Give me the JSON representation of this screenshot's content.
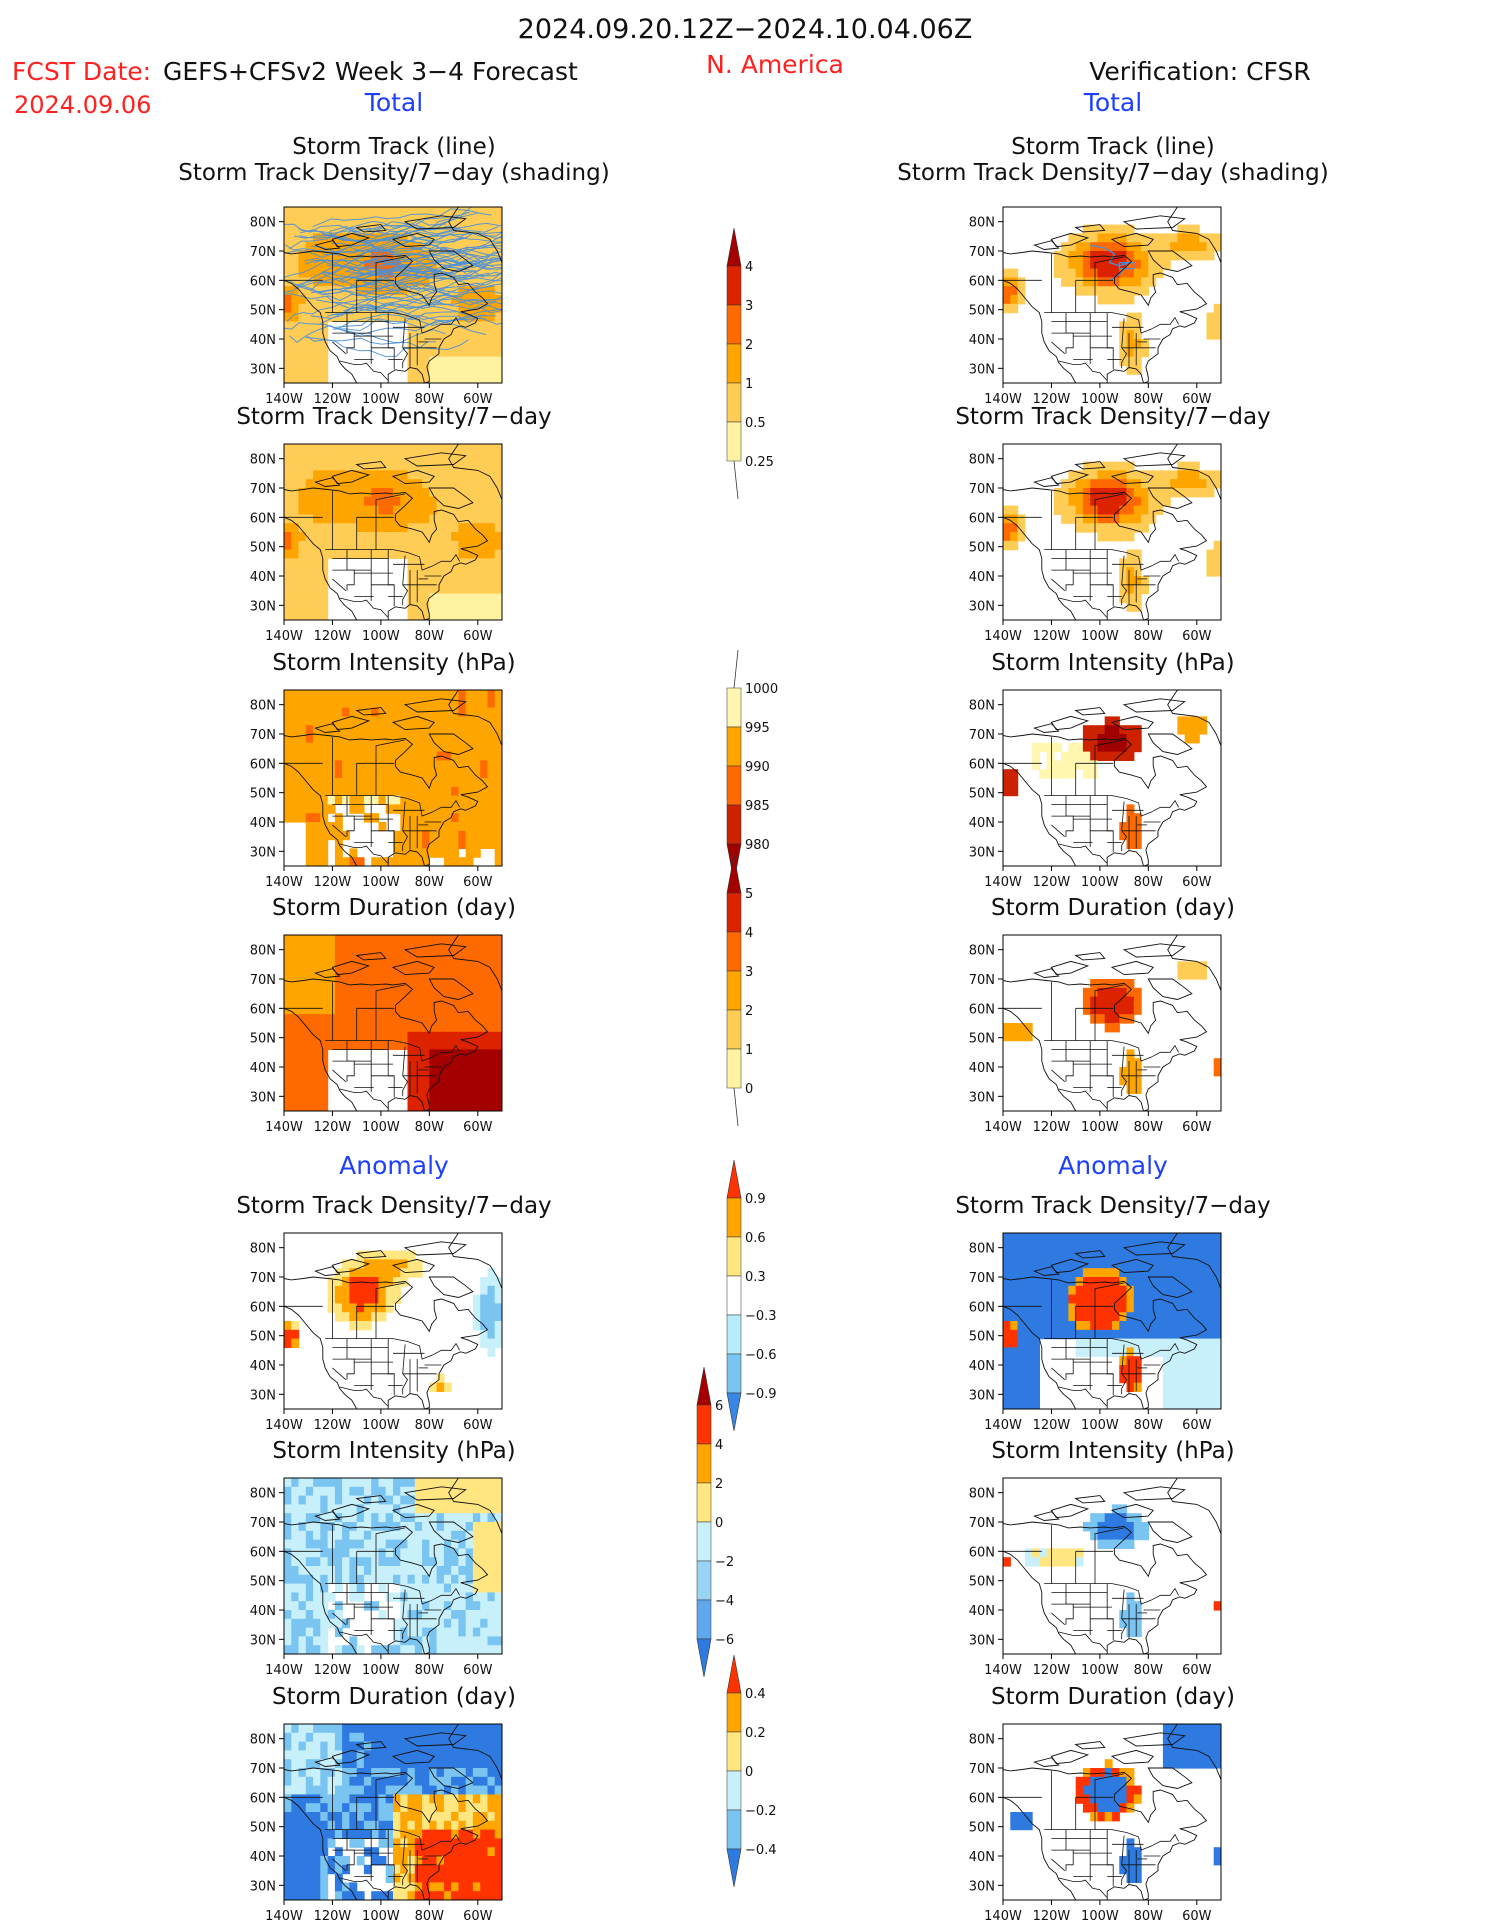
{
  "header": {
    "title": "2024.09.20.12Z−2024.10.04.06Z",
    "fcst_label": "FCST Date:",
    "fcst_date": "2024.09.06",
    "left_title": "GEFS+CFSv2 Week 3−4 Forecast",
    "region": "N. America",
    "right_title": "Verification: CFSR"
  },
  "sections": {
    "total": "Total",
    "anomaly": "Anomaly"
  },
  "panel_titles": {
    "track_line": "Storm Track (line)",
    "track_shading": "Storm Track Density/7−day (shading)",
    "density": "Storm Track Density/7−day",
    "intensity": "Storm Intensity (hPa)",
    "duration": "Storm Duration (day)"
  },
  "axes": {
    "lat_labels": [
      "80N",
      "70N",
      "60N",
      "50N",
      "40N",
      "30N"
    ],
    "lon_labels": [
      "140W",
      "120W",
      "100W",
      "80W",
      "60W"
    ]
  },
  "colorbars": [
    {
      "id": "density-total",
      "labels": [
        "4",
        "3",
        "2",
        "1",
        "0.5",
        "0.25"
      ],
      "colors": [
        "#a50000",
        "#dd2200",
        "#ff6a00",
        "#ffa500",
        "#ffcc55",
        "#fff2a0"
      ],
      "arrow_top": true,
      "arrow_bottom": false
    },
    {
      "id": "intensity-total",
      "labels": [
        "1000",
        "995",
        "990",
        "985",
        "980"
      ],
      "colors": [
        "#fff6b0",
        "#ffa500",
        "#ff6a00",
        "#cc2200",
        "#a00000"
      ],
      "arrow_top": false,
      "arrow_bottom": true
    },
    {
      "id": "duration-total",
      "labels": [
        "5",
        "4",
        "3",
        "2",
        "1",
        "0"
      ],
      "colors": [
        "#a50000",
        "#dd2200",
        "#ff6a00",
        "#ffa500",
        "#ffcc55",
        "#fff2a0"
      ],
      "arrow_top": true,
      "arrow_bottom": false
    },
    {
      "id": "density-anom",
      "labels": [
        "0.9",
        "0.6",
        "0.3",
        "−0.3",
        "−0.6",
        "−0.9"
      ],
      "colors": [
        "#ff3300",
        "#ffa500",
        "#ffe680",
        "#ffffff",
        "#b8ecfa",
        "#7ac4f2",
        "#3a86e6"
      ],
      "arrow_top": true,
      "arrow_bottom": true
    },
    {
      "id": "intensity-anom",
      "labels": [
        "6",
        "4",
        "2",
        "0",
        "−2",
        "−4",
        "−6"
      ],
      "colors": [
        "#a50000",
        "#ff3300",
        "#ffa500",
        "#ffe680",
        "#c8f0fa",
        "#9ad4f5",
        "#5fa8ec",
        "#2f7ae0"
      ],
      "arrow_top": true,
      "arrow_bottom": true
    },
    {
      "id": "duration-anom",
      "labels": [
        "0.4",
        "0.2",
        "0",
        "−0.2",
        "−0.4"
      ],
      "colors": [
        "#ff3300",
        "#ffa500",
        "#ffe680",
        "#c8f0fa",
        "#7ac4f2",
        "#2f7ae0"
      ],
      "arrow_top": true,
      "arrow_bottom": true
    }
  ],
  "legend_colors": {
    "track_line": "#4a90d9",
    "coast": "#111111",
    "title_blue": "#1f3fff",
    "title_red": "#ff2020"
  }
}
